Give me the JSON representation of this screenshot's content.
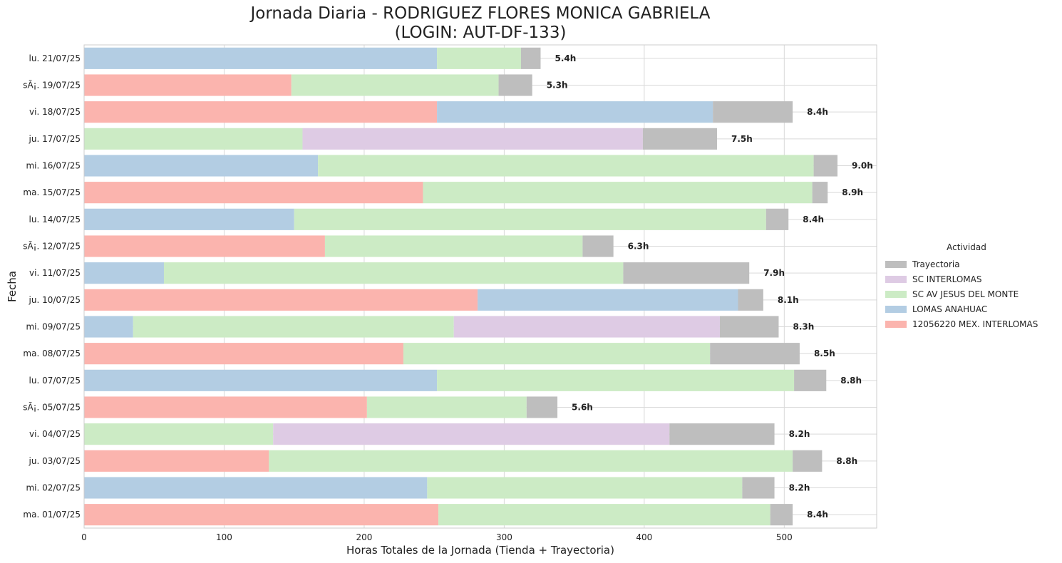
{
  "chart_data": {
    "type": "bar",
    "orientation": "horizontal",
    "stacked": true,
    "title": [
      "Jornada Diaria - RODRIGUEZ FLORES MONICA GABRIELA",
      "(LOGIN: AUT-DF-133)"
    ],
    "xlabel": "Horas Totales de la Jornada (Tienda + Trayectoria)",
    "ylabel": "Fecha",
    "xlim": [
      0,
      566
    ],
    "xticks": [
      0,
      100,
      200,
      300,
      400,
      500
    ],
    "grid": true,
    "legend_title": "Actividad",
    "legend_position": "center-right",
    "categories": [
      "lu. 21/07/25",
      "sÃ¡. 19/07/25",
      "vi. 18/07/25",
      "ju. 17/07/25",
      "mi. 16/07/25",
      "ma. 15/07/25",
      "lu. 14/07/25",
      "sÃ¡. 12/07/25",
      "vi. 11/07/25",
      "ju. 10/07/25",
      "mi. 09/07/25",
      "ma. 08/07/25",
      "lu. 07/07/25",
      "sÃ¡. 05/07/25",
      "vi. 04/07/25",
      "ju. 03/07/25",
      "mi. 02/07/25",
      "ma. 01/07/25"
    ],
    "totals_labels": [
      "5.4h",
      "5.3h",
      "8.4h",
      "7.5h",
      "9.0h",
      "8.9h",
      "8.4h",
      "6.3h",
      "7.9h",
      "8.1h",
      "8.3h",
      "8.5h",
      "8.8h",
      "5.6h",
      "8.2h",
      "8.8h",
      "8.2h",
      "8.4h"
    ],
    "rows": [
      {
        "segments": [
          {
            "series": "LOMAS ANAHUAC",
            "value": 252
          },
          {
            "series": "SC AV JESUS DEL MONTE",
            "value": 60
          },
          {
            "series": "Trayectoria",
            "value": 14
          }
        ]
      },
      {
        "segments": [
          {
            "series": "12056220 MEX. INTERLOMAS",
            "value": 148
          },
          {
            "series": "SC AV JESUS DEL MONTE",
            "value": 148
          },
          {
            "series": "Trayectoria",
            "value": 24
          }
        ]
      },
      {
        "segments": [
          {
            "series": "12056220 MEX. INTERLOMAS",
            "value": 252
          },
          {
            "series": "LOMAS ANAHUAC",
            "value": 197
          },
          {
            "series": "Trayectoria",
            "value": 57
          }
        ]
      },
      {
        "segments": [
          {
            "series": "SC AV JESUS DEL MONTE",
            "value": 156
          },
          {
            "series": "SC INTERLOMAS",
            "value": 243
          },
          {
            "series": "Trayectoria",
            "value": 53
          }
        ]
      },
      {
        "segments": [
          {
            "series": "LOMAS ANAHUAC",
            "value": 167
          },
          {
            "series": "SC AV JESUS DEL MONTE",
            "value": 354
          },
          {
            "series": "Trayectoria",
            "value": 17
          }
        ]
      },
      {
        "segments": [
          {
            "series": "12056220 MEX. INTERLOMAS",
            "value": 242
          },
          {
            "series": "SC AV JESUS DEL MONTE",
            "value": 278
          },
          {
            "series": "Trayectoria",
            "value": 11
          }
        ]
      },
      {
        "segments": [
          {
            "series": "LOMAS ANAHUAC",
            "value": 150
          },
          {
            "series": "SC AV JESUS DEL MONTE",
            "value": 337
          },
          {
            "series": "Trayectoria",
            "value": 16
          }
        ]
      },
      {
        "segments": [
          {
            "series": "12056220 MEX. INTERLOMAS",
            "value": 172
          },
          {
            "series": "SC AV JESUS DEL MONTE",
            "value": 184
          },
          {
            "series": "Trayectoria",
            "value": 22
          }
        ]
      },
      {
        "segments": [
          {
            "series": "LOMAS ANAHUAC",
            "value": 57
          },
          {
            "series": "SC AV JESUS DEL MONTE",
            "value": 328
          },
          {
            "series": "Trayectoria",
            "value": 90
          }
        ]
      },
      {
        "segments": [
          {
            "series": "12056220 MEX. INTERLOMAS",
            "value": 281
          },
          {
            "series": "LOMAS ANAHUAC",
            "value": 186
          },
          {
            "series": "Trayectoria",
            "value": 18
          }
        ]
      },
      {
        "segments": [
          {
            "series": "LOMAS ANAHUAC",
            "value": 35
          },
          {
            "series": "SC AV JESUS DEL MONTE",
            "value": 229
          },
          {
            "series": "SC INTERLOMAS",
            "value": 190
          },
          {
            "series": "Trayectoria",
            "value": 42
          }
        ]
      },
      {
        "segments": [
          {
            "series": "12056220 MEX. INTERLOMAS",
            "value": 228
          },
          {
            "series": "SC AV JESUS DEL MONTE",
            "value": 219
          },
          {
            "series": "Trayectoria",
            "value": 64
          }
        ]
      },
      {
        "segments": [
          {
            "series": "LOMAS ANAHUAC",
            "value": 252
          },
          {
            "series": "SC AV JESUS DEL MONTE",
            "value": 255
          },
          {
            "series": "Trayectoria",
            "value": 23
          }
        ]
      },
      {
        "segments": [
          {
            "series": "12056220 MEX. INTERLOMAS",
            "value": 202
          },
          {
            "series": "SC AV JESUS DEL MONTE",
            "value": 114
          },
          {
            "series": "Trayectoria",
            "value": 22
          }
        ]
      },
      {
        "segments": [
          {
            "series": "SC AV JESUS DEL MONTE",
            "value": 135
          },
          {
            "series": "SC INTERLOMAS",
            "value": 283
          },
          {
            "series": "Trayectoria",
            "value": 75
          }
        ]
      },
      {
        "segments": [
          {
            "series": "12056220 MEX. INTERLOMAS",
            "value": 132
          },
          {
            "series": "SC AV JESUS DEL MONTE",
            "value": 374
          },
          {
            "series": "Trayectoria",
            "value": 21
          }
        ]
      },
      {
        "segments": [
          {
            "series": "LOMAS ANAHUAC",
            "value": 245
          },
          {
            "series": "SC AV JESUS DEL MONTE",
            "value": 225
          },
          {
            "series": "Trayectoria",
            "value": 23
          }
        ]
      },
      {
        "segments": [
          {
            "series": "12056220 MEX. INTERLOMAS",
            "value": 253
          },
          {
            "series": "SC AV JESUS DEL MONTE",
            "value": 237
          },
          {
            "series": "Trayectoria",
            "value": 16
          }
        ]
      }
    ],
    "legend": [
      {
        "name": "Trayectoria",
        "color": "#bebebe"
      },
      {
        "name": "SC INTERLOMAS",
        "color": "#decbe4"
      },
      {
        "name": "SC AV JESUS DEL MONTE",
        "color": "#ccebc5"
      },
      {
        "name": "LOMAS ANAHUAC",
        "color": "#b3cde3"
      },
      {
        "name": "12056220 MEX. INTERLOMAS",
        "color": "#fbb4ae"
      }
    ]
  }
}
